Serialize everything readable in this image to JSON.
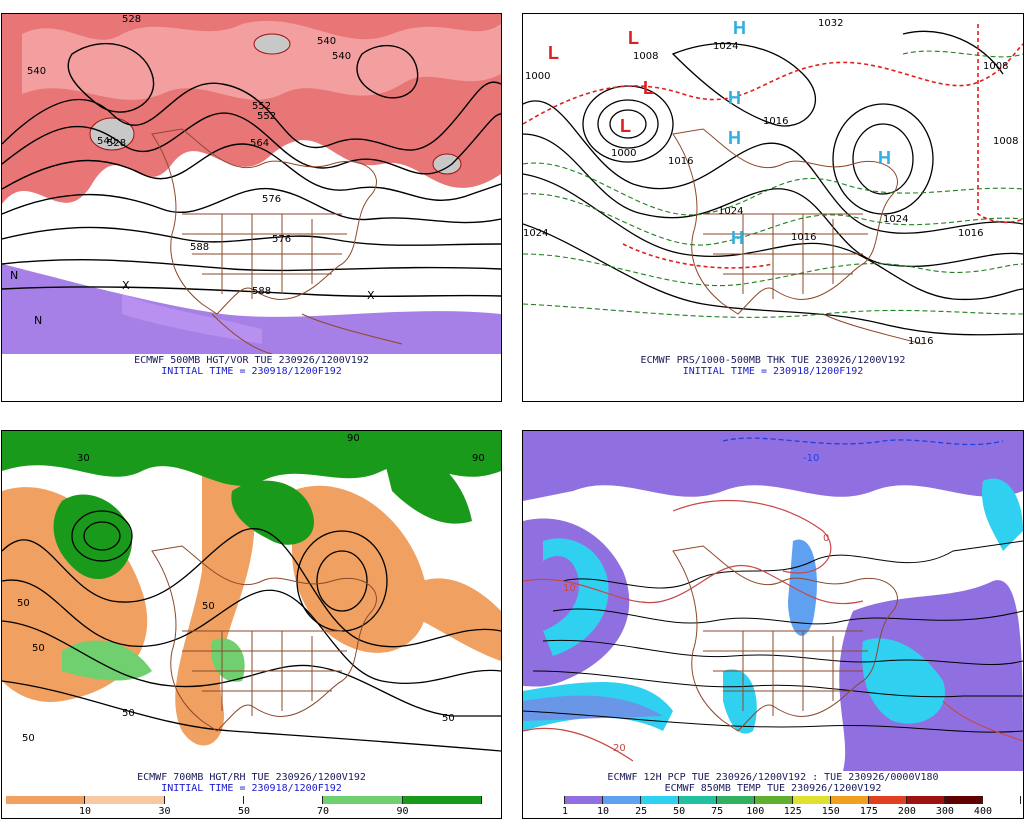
{
  "panels": [
    {
      "title": "ECMWF 500MB HGT/VOR TUE 230926/1200V192",
      "subtitle": "INITIAL TIME = 230918/1200F192",
      "labels": [
        "528",
        "540",
        "540",
        "540",
        "528",
        "540",
        "552",
        "552",
        "564",
        "576",
        "576",
        "588",
        "588",
        "X",
        "X",
        "N",
        "N"
      ]
    },
    {
      "title": "ECMWF PRS/1000-500MB THK TUE 230926/1200V192",
      "subtitle": "INITIAL TIME = 230918/1200F192",
      "labels": [
        "1000",
        "1008",
        "1000",
        "1024",
        "1016",
        "1016",
        "1024",
        "1016",
        "1024",
        "1032",
        "1016",
        "1024",
        "1008",
        "1008",
        "1016"
      ],
      "highs": [
        "H",
        "H",
        "H",
        "H",
        "H"
      ],
      "lows": [
        "L",
        "L",
        "L",
        "L"
      ]
    },
    {
      "title": "ECMWF 700MB HGT/RH TUE 230926/1200V192",
      "subtitle": "INITIAL TIME = 230918/1200F192",
      "colorbar_ticks": [
        "10",
        "30",
        "50",
        "70",
        "90"
      ],
      "colorbar_colors": [
        "#f0a060",
        "#f8c8a0",
        "#ffffff",
        "#ffffff",
        "#70d070",
        "#1a9a1a"
      ],
      "labels": [
        "50",
        "50",
        "50",
        "50",
        "50",
        "50",
        "90",
        "30",
        "90"
      ]
    },
    {
      "title": "ECMWF 12H PCP TUE 230926/1200V192 : TUE 230926/0000V180",
      "subtitle": "ECMWF 850MB TEMP TUE 230926/1200V192",
      "colorbar_ticks": [
        "1",
        "10",
        "25",
        "50",
        "75",
        "100",
        "125",
        "150",
        "175",
        "200",
        "300",
        "400"
      ],
      "colorbar_colors": [
        "#ffffff",
        "#9070e0",
        "#60a0f0",
        "#30d0f0",
        "#20c0a0",
        "#30b060",
        "#60b030",
        "#e0e030",
        "#f0a020",
        "#e04020",
        "#a01010",
        "#600000",
        "#ffffff"
      ],
      "labels": [
        "-10",
        "0",
        "10",
        "20"
      ]
    }
  ]
}
